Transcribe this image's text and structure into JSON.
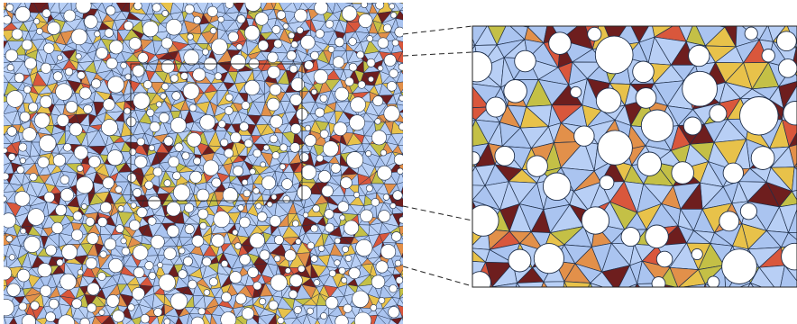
{
  "colors": {
    "background": "#ffffff",
    "cell_blue": "#aac4f0",
    "cell_blue_alt": "#b8cff5",
    "cell_yellow": "#e8c24a",
    "cell_olive": "#c4c046",
    "cell_orange": "#e2904a",
    "cell_red": "#d9573c",
    "cell_maroon": "#6e1e1e",
    "edge": "#1f2f4a",
    "hole_fill": "#ffffff",
    "hole_stroke": "#1f2f4a",
    "frame": "#222222",
    "connector": "#222222"
  },
  "panels": [
    {
      "name": "overview",
      "description_icon": "tessellation-with-holes"
    },
    {
      "name": "zoom",
      "description_icon": "magnified-region"
    }
  ]
}
